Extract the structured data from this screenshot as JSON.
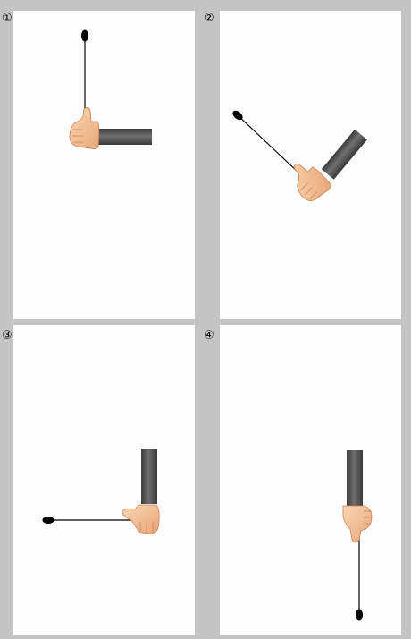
{
  "panels": [
    {
      "number": "①"
    },
    {
      "number": "②"
    },
    {
      "number": "③"
    },
    {
      "number": "④"
    }
  ],
  "colors": {
    "background": "#c4c4c4",
    "panel": "#fdfdfd",
    "sleeve_dark": "#3a3a3a",
    "sleeve_light": "#6a6a6a",
    "skin": "#f4c49a",
    "skin_shade": "#d9956a",
    "line": "#000000"
  },
  "icons": {
    "hand": "thumbs-up-hand-icon",
    "sleeve": "sleeve-icon",
    "pendulum": "pendulum-icon"
  }
}
